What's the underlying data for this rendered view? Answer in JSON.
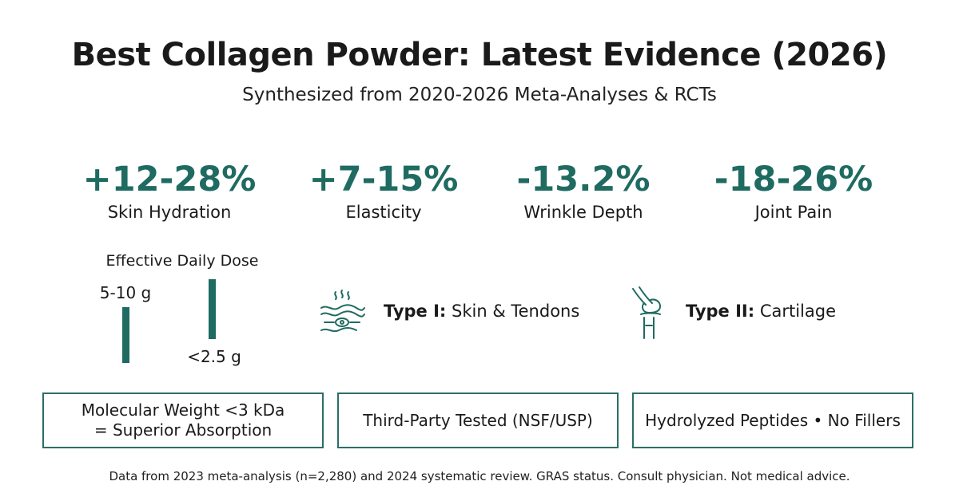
{
  "header": {
    "title": "Best Collagen Powder: Latest Evidence (2026)",
    "subtitle": "Synthesized from 2020-2026 Meta-Analyses & RCTs"
  },
  "stats": [
    {
      "value": "+12-28%",
      "label": "Skin Hydration"
    },
    {
      "value": "+7-15%",
      "label": "Elasticity"
    },
    {
      "value": "-13.2%",
      "label": "Wrinkle Depth"
    },
    {
      "value": "-18-26%",
      "label": "Joint Pain"
    }
  ],
  "dose": {
    "title": "Effective Daily Dose",
    "items": [
      "5-10 g",
      "<2.5 g"
    ]
  },
  "types": [
    {
      "name": "Type I:",
      "description": "Skin & Tendons"
    },
    {
      "name": "Type II:",
      "description": "Cartilage"
    }
  ],
  "features": [
    [
      "Molecular Weight <3 kDa",
      "= Superior Absorption"
    ],
    [
      "Third-Party Tested (NSF/USP)"
    ],
    [
      "Hydrolyzed Peptides • No Fillers"
    ]
  ],
  "footer": "Data from 2023 meta-analysis (n=2,280) and 2024 systematic review. GRAS status. Consult physician. Not medical advice."
}
